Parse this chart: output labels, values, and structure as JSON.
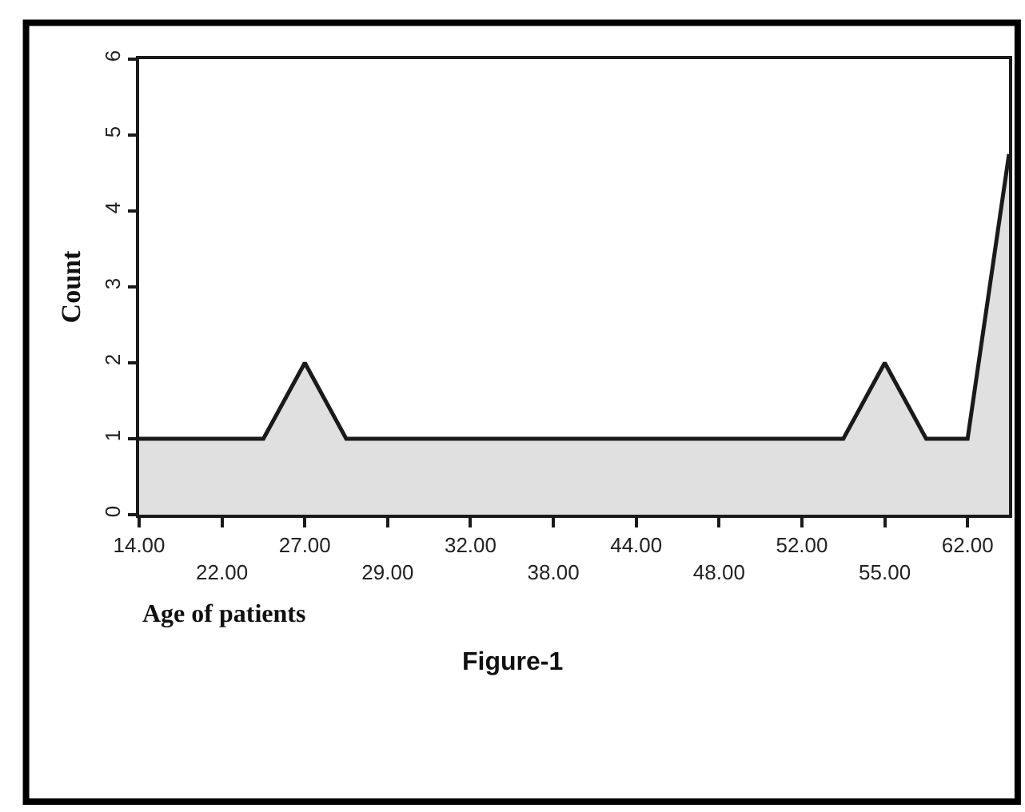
{
  "chart_data": {
    "type": "area",
    "categories": [
      "14.00",
      null,
      "22.00",
      null,
      "27.00",
      null,
      "29.00",
      null,
      "32.00",
      null,
      "38.00",
      null,
      "44.00",
      null,
      "48.00",
      null,
      "52.00",
      null,
      "55.00",
      null,
      "62.00",
      null
    ],
    "values": [
      1,
      1,
      1,
      1,
      2,
      1,
      1,
      1,
      1,
      1,
      1,
      1,
      1,
      1,
      1,
      1,
      1,
      1,
      2,
      1,
      1,
      4.75
    ],
    "color": "#e0e0e0",
    "xlabel": "Age of patients",
    "ylabel": "Count",
    "ylim": [
      0,
      6
    ],
    "yticks": [
      0,
      1,
      2,
      3,
      4,
      5,
      6
    ],
    "annotations": [
      "Figure-1"
    ],
    "legend": false
  }
}
